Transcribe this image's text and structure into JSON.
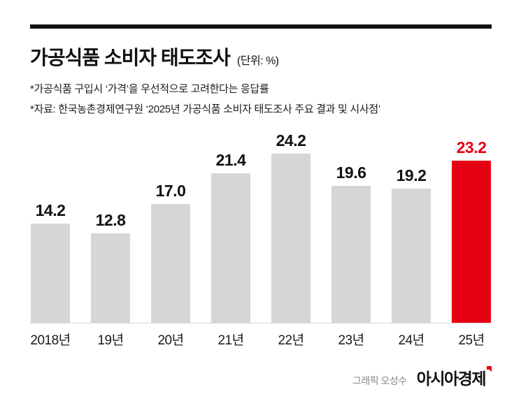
{
  "colors": {
    "bar_gray": "#d6d6d6",
    "highlight_red": "#e60013",
    "rule_black": "#111111"
  },
  "header": {
    "title": "가공식품 소비자 태도조사",
    "unit": "(단위: %)",
    "note1": "*가공식품 구입시 ‘가격’을 우선적으로 고려한다는 응답률",
    "note2": "*자료: 한국농촌경제연구원 ‘2025년 가공식품 소비자 태도조사 주요 결과 및 시사점’"
  },
  "chart_data": {
    "type": "bar",
    "title": "가공식품 소비자 태도조사",
    "unit": "%",
    "categories": [
      "2018년",
      "19년",
      "20년",
      "21년",
      "22년",
      "23년",
      "24년",
      "25년"
    ],
    "values": [
      14.2,
      12.8,
      17.0,
      21.4,
      24.2,
      19.6,
      19.2,
      23.2
    ],
    "highlight_index": 7,
    "bar_color": "#d6d6d6",
    "highlight_color": "#e60013",
    "ylim": [
      0,
      26
    ],
    "grid": false,
    "legend": false,
    "value_labels": "above-bars"
  },
  "footer": {
    "credit": "그래픽 오성수",
    "logo": "아시아경제"
  }
}
